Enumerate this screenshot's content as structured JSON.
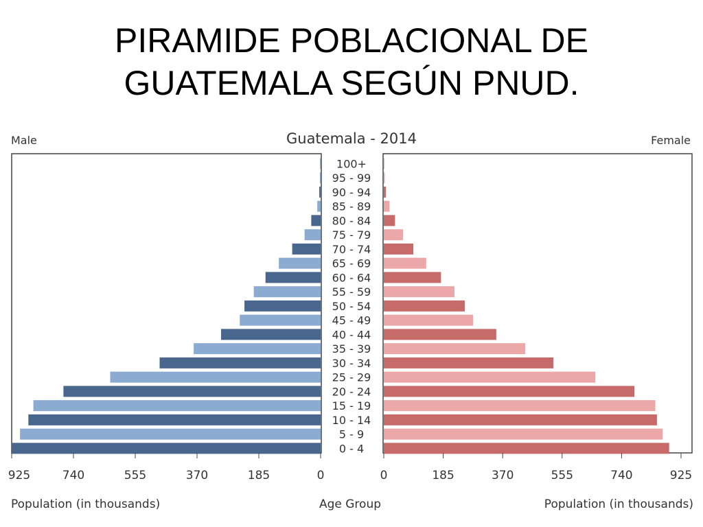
{
  "slide": {
    "title_line1": "PIRAMIDE POBLACIONAL DE",
    "title_line2": "GUATEMALA SEGÚN PNUD."
  },
  "chart_data": {
    "type": "bar",
    "subtype": "population-pyramid",
    "title": "Guatemala - 2014",
    "left_label": "Male",
    "right_label": "Female",
    "xlabel_left": "Population (in thousands)",
    "xlabel_center": "Age Group",
    "xlabel_right": "Population (in thousands)",
    "xticks": [
      "925",
      "740",
      "555",
      "370",
      "185",
      "0"
    ],
    "xticks_right": [
      "0",
      "185",
      "370",
      "555",
      "740",
      "925"
    ],
    "xlim": [
      0,
      925
    ],
    "categories": [
      "100+",
      "95 - 99",
      "90 - 94",
      "85 - 89",
      "80 - 84",
      "75 - 79",
      "70 - 74",
      "65 - 69",
      "60 - 64",
      "55 - 59",
      "50 - 54",
      "45 - 49",
      "40 - 44",
      "35 - 39",
      "30 - 34",
      "25 - 29",
      "20 - 24",
      "15 - 19",
      "10 - 14",
      "5 - 9",
      "0 - 4"
    ],
    "series": [
      {
        "name": "Male",
        "values": [
          1,
          2,
          4,
          10,
          28,
          48,
          85,
          125,
          165,
          200,
          228,
          242,
          298,
          380,
          482,
          630,
          770,
          860,
          875,
          900,
          925
        ]
      },
      {
        "name": "Female",
        "values": [
          1,
          3,
          7,
          18,
          35,
          60,
          92,
          132,
          178,
          220,
          252,
          278,
          350,
          440,
          528,
          658,
          780,
          845,
          850,
          868,
          888
        ]
      }
    ],
    "colors": {
      "male_dark": "#49668d",
      "male_light": "#8bacd0",
      "female_dark": "#c66a6a",
      "female_light": "#eca8a8"
    },
    "grid": false
  }
}
